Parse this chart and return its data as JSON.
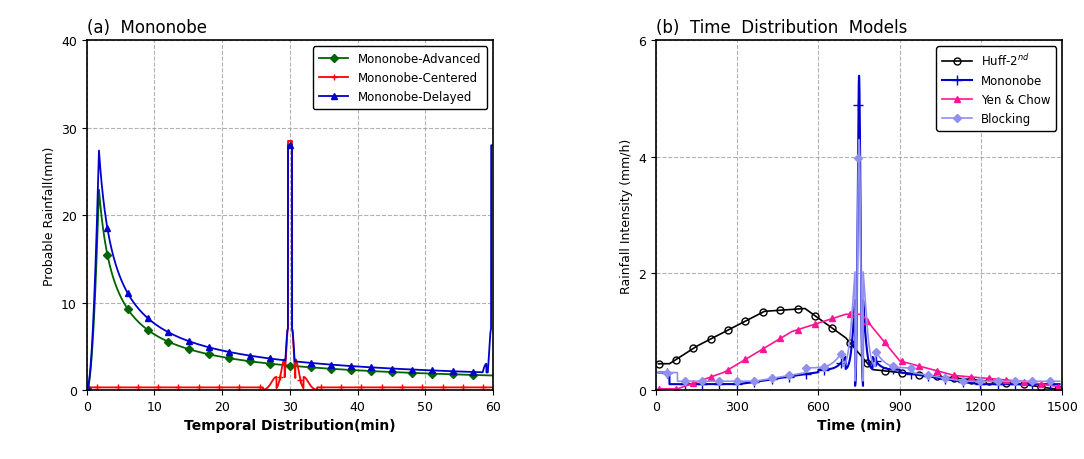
{
  "panel_a": {
    "title": "(a)  Mononobe",
    "xlabel": "Temporal Distribution(min)",
    "ylabel": "Probable Rainfall(mm)",
    "xlim": [
      0,
      60
    ],
    "ylim": [
      0,
      40
    ],
    "xticks": [
      0,
      10,
      20,
      30,
      40,
      50,
      60
    ],
    "yticks": [
      0,
      10,
      20,
      30,
      40
    ],
    "series": {
      "advanced": {
        "label": "Mononobe-Advanced",
        "color": "#006400",
        "marker": "D",
        "markersize": 4,
        "linewidth": 1.3
      },
      "centered": {
        "label": "Mononobe-Centered",
        "color": "#FF0000",
        "marker": "+",
        "markersize": 5,
        "linewidth": 1.3
      },
      "delayed": {
        "label": "Mononobe-Delayed",
        "color": "#0000CD",
        "marker": "^",
        "markersize": 4,
        "linewidth": 1.3
      }
    }
  },
  "panel_b": {
    "title": "(b)  Time  Distribution  Models",
    "xlabel": "Time (min)",
    "ylabel": "Rainfall Intensity (mm/h)",
    "xlim": [
      0,
      1500
    ],
    "ylim": [
      0,
      6
    ],
    "xticks": [
      0,
      300,
      600,
      900,
      1200,
      1500
    ],
    "yticks": [
      0,
      2,
      4,
      6
    ],
    "series": {
      "huff2": {
        "label": "Huff-2$^{nd}$",
        "color": "#000000",
        "marker": "o",
        "markersize": 5,
        "linewidth": 1.2,
        "markerfacecolor": "none"
      },
      "mononobe": {
        "label": "Mononobe",
        "color": "#0000CD",
        "marker": "+",
        "markersize": 7,
        "linewidth": 1.5
      },
      "yenchow": {
        "label": "Yen & Chow",
        "color": "#FF1493",
        "marker": "^",
        "markersize": 5,
        "linewidth": 1.2
      },
      "blocking": {
        "label": "Blocking",
        "color": "#9090EE",
        "marker": "D",
        "markersize": 4,
        "linewidth": 1.2
      }
    }
  }
}
